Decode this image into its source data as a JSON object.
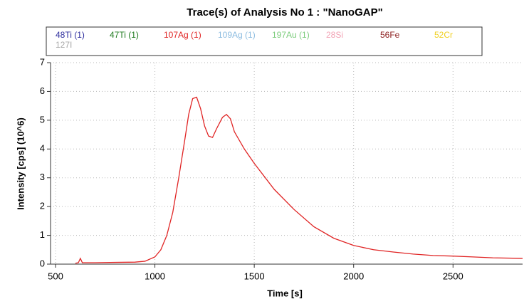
{
  "chart_data": {
    "type": "line",
    "title": "Trace(s) of Analysis No 1 : \"NanoGAP\"",
    "x_label": "Time [s]",
    "y_label": "Intensity [cps] (10^6)",
    "xlim": [
      475,
      2850
    ],
    "ylim": [
      0,
      7
    ],
    "xticks": [
      500,
      1000,
      1500,
      2000,
      2500
    ],
    "yticks": [
      0,
      1,
      2,
      3,
      4,
      5,
      6,
      7
    ],
    "grid": true,
    "legend": "top",
    "x": [
      600,
      615,
      625,
      635,
      700,
      800,
      900,
      950,
      1000,
      1030,
      1060,
      1090,
      1120,
      1150,
      1170,
      1190,
      1210,
      1230,
      1250,
      1270,
      1290,
      1310,
      1340,
      1360,
      1380,
      1400,
      1450,
      1500,
      1600,
      1700,
      1800,
      1900,
      2000,
      2100,
      2200,
      2300,
      2400,
      2500,
      2600,
      2700,
      2850
    ],
    "series": [
      {
        "name": "48Ti (1)",
        "color": "#2e2e9e"
      },
      {
        "name": "47Ti (1)",
        "color": "#1e7a1e"
      },
      {
        "name": "107Ag (1)",
        "color": "#e02424",
        "values": [
          0.03,
          0.05,
          0.2,
          0.05,
          0.05,
          0.06,
          0.07,
          0.1,
          0.25,
          0.5,
          1.0,
          1.8,
          3.0,
          4.3,
          5.2,
          5.75,
          5.8,
          5.4,
          4.8,
          4.45,
          4.4,
          4.7,
          5.1,
          5.2,
          5.05,
          4.6,
          4.0,
          3.5,
          2.6,
          1.9,
          1.3,
          0.9,
          0.65,
          0.5,
          0.42,
          0.35,
          0.3,
          0.28,
          0.25,
          0.22,
          0.2
        ]
      },
      {
        "name": "109Ag (1)",
        "color": "#8cbce0"
      },
      {
        "name": "197Au (1)",
        "color": "#7ccc7c"
      },
      {
        "name": "28Si",
        "color": "#f2a2b4"
      },
      {
        "name": "56Fe",
        "color": "#8b1c1c"
      },
      {
        "name": "52Cr",
        "color": "#f0d020"
      },
      {
        "name": "127I",
        "color": "#a8a8a8"
      }
    ]
  }
}
